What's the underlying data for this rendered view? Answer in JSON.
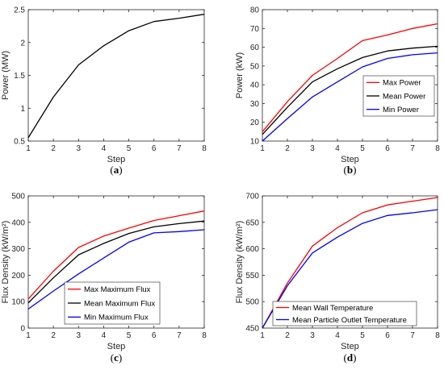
{
  "chart_data": [
    {
      "id": "a",
      "panel_label": "a",
      "type": "line",
      "xlabel": "Step",
      "ylabel": "Power (MW)",
      "xlim": [
        1,
        8
      ],
      "ylim": [
        0.5,
        2.5
      ],
      "xticks": [
        1,
        2,
        3,
        4,
        5,
        6,
        7,
        8
      ],
      "yticks": [
        0.5,
        1,
        1.5,
        2,
        2.5
      ],
      "x": [
        1,
        2,
        3,
        4,
        5,
        6,
        7,
        8
      ],
      "legend": null,
      "series": [
        {
          "color": "#000000",
          "values": [
            0.55,
            1.17,
            1.66,
            1.95,
            2.18,
            2.32,
            2.37,
            2.43
          ]
        }
      ]
    },
    {
      "id": "b",
      "panel_label": "b",
      "type": "line",
      "xlabel": "Step",
      "ylabel": "Power (kW)",
      "xlim": [
        1,
        8
      ],
      "ylim": [
        10,
        80
      ],
      "xticks": [
        1,
        2,
        3,
        4,
        5,
        6,
        7,
        8
      ],
      "yticks": [
        10,
        20,
        30,
        40,
        50,
        60,
        70,
        80
      ],
      "x": [
        1,
        2,
        3,
        4,
        5,
        6,
        7,
        8
      ],
      "legend": "middle-right",
      "series": [
        {
          "name": "Max Power",
          "color": "#ff0000",
          "values": [
            15,
            31,
            45,
            54,
            63.5,
            66.5,
            70,
            72.5
          ]
        },
        {
          "name": "Mean Power",
          "color": "#000000",
          "values": [
            13.5,
            28,
            41.5,
            48.5,
            54.5,
            58,
            59.5,
            60.5
          ]
        },
        {
          "name": "Min Power",
          "color": "#0000ff",
          "values": [
            10,
            22,
            33.5,
            41.5,
            49.5,
            54,
            56,
            57
          ]
        }
      ]
    },
    {
      "id": "c",
      "panel_label": "c",
      "type": "line",
      "xlabel": "Step",
      "ylabel": "Flux Density (kW/m²)",
      "xlim": [
        1,
        8
      ],
      "ylim": [
        0,
        500
      ],
      "xticks": [
        1,
        2,
        3,
        4,
        5,
        6,
        7,
        8
      ],
      "yticks": [
        0,
        100,
        200,
        300,
        400,
        500
      ],
      "x": [
        1,
        2,
        3,
        4,
        5,
        6,
        7,
        8
      ],
      "legend": "bottom-center",
      "series": [
        {
          "name": "Max Maximum Flux",
          "color": "#ff0000",
          "values": [
            110,
            215,
            305,
            348,
            378,
            407,
            425,
            443
          ]
        },
        {
          "name": "Mean Maximum Flux",
          "color": "#000000",
          "values": [
            95,
            190,
            277,
            320,
            358,
            383,
            395,
            405
          ]
        },
        {
          "name": "Min Maximum Flux",
          "color": "#0000ff",
          "values": [
            72,
            140,
            205,
            265,
            325,
            360,
            365,
            372
          ]
        }
      ]
    },
    {
      "id": "d",
      "panel_label": "d",
      "type": "line",
      "xlabel": "Step",
      "ylabel": "Flux Density (kW/m²)",
      "xlim": [
        1,
        8
      ],
      "ylim": [
        450,
        700
      ],
      "xticks": [
        1,
        2,
        3,
        4,
        5,
        6,
        7,
        8
      ],
      "yticks": [
        450,
        500,
        550,
        600,
        650,
        700
      ],
      "x": [
        1,
        2,
        3,
        4,
        5,
        6,
        7,
        8
      ],
      "legend": "bottom-right",
      "series": [
        {
          "name": "Mean Wall Temperature",
          "color": "#ff0000",
          "values": [
            450,
            535,
            605,
            640,
            668,
            683,
            690,
            697
          ]
        },
        {
          "name": "Mean Particle Outlet Temperature",
          "color": "#0000ff",
          "values": [
            450,
            530,
            592,
            622,
            648,
            663,
            668,
            674
          ]
        }
      ]
    }
  ]
}
